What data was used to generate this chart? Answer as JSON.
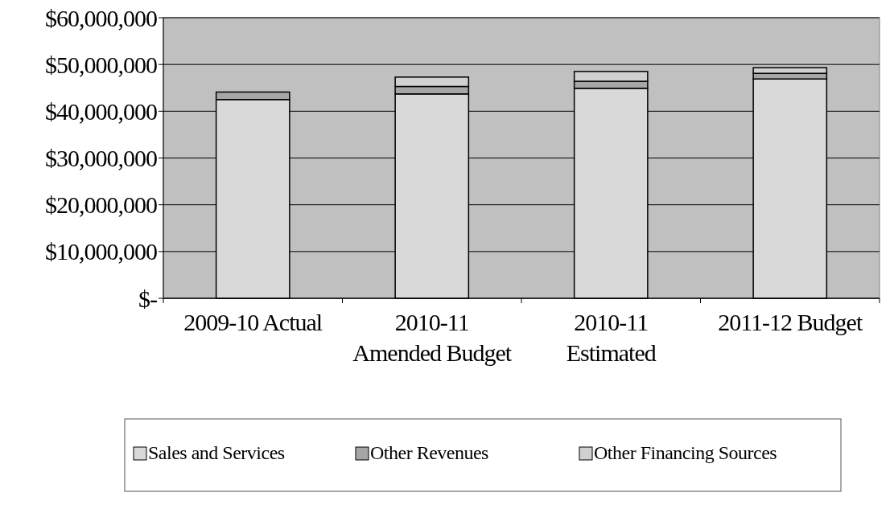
{
  "chart_data": {
    "type": "bar",
    "stacked": true,
    "categories": [
      "2009-10 Actual",
      "2010-11 Amended Budget",
      "2010-11 Estimated",
      "2011-12 Budget"
    ],
    "series": [
      {
        "name": "Sales and Services",
        "color": "#d9d9d9",
        "values": [
          42500000,
          43700000,
          44900000,
          46900000
        ]
      },
      {
        "name": "Other Revenues",
        "color": "#a6a6a6",
        "values": [
          1600000,
          1600000,
          1500000,
          1200000
        ]
      },
      {
        "name": "Other Financing Sources",
        "color": "#d0d0d0",
        "values": [
          0,
          2000000,
          2100000,
          1200000
        ]
      }
    ],
    "ylim": [
      0,
      60000000
    ],
    "yticks": [
      {
        "value": 0,
        "label": "$-"
      },
      {
        "value": 10000000,
        "label": "$10,000,000"
      },
      {
        "value": 20000000,
        "label": "$20,000,000"
      },
      {
        "value": 30000000,
        "label": "$30,000,000"
      },
      {
        "value": 40000000,
        "label": "$40,000,000"
      },
      {
        "value": 50000000,
        "label": "$50,000,000"
      },
      {
        "value": 60000000,
        "label": "$60,000,000"
      }
    ],
    "grid": "y",
    "legend": "bottom"
  }
}
